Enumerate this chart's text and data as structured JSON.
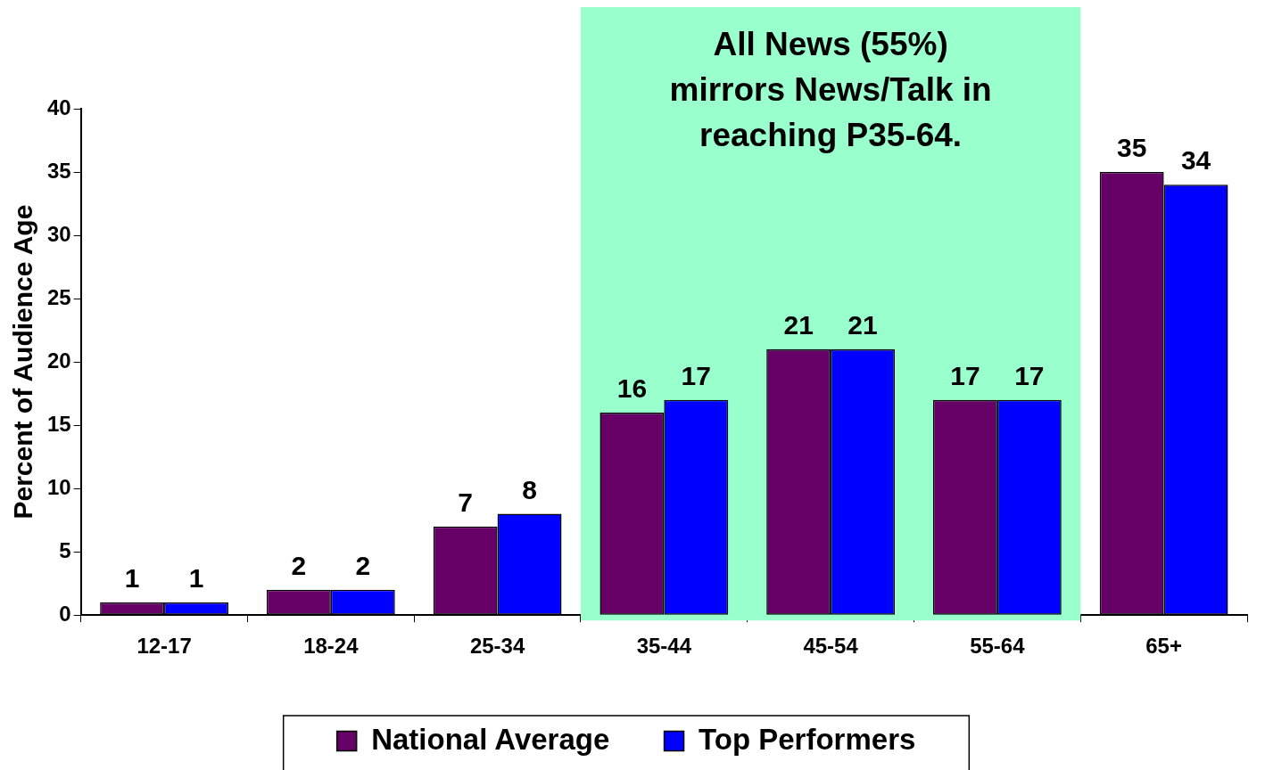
{
  "chart_data": {
    "type": "bar",
    "ylabel": "Percent of Audience Age",
    "categories": [
      "12-17",
      "18-24",
      "25-34",
      "35-44",
      "45-54",
      "55-64",
      "65+"
    ],
    "series": [
      {
        "name": "National Average",
        "color": "#660066",
        "values": [
          1,
          2,
          7,
          16,
          21,
          17,
          35
        ]
      },
      {
        "name": "Top Performers",
        "color": "#0000ff",
        "values": [
          1,
          2,
          8,
          17,
          21,
          17,
          34
        ]
      }
    ],
    "ylim": [
      0,
      40
    ],
    "yticks": [
      0,
      5,
      10,
      15,
      20,
      25,
      30,
      35,
      40
    ],
    "data_labels": true,
    "legend": "bottom",
    "bands": [
      {
        "axis": "x",
        "from": "35-44",
        "to": "55-64",
        "color": "#99ffcc",
        "label": "All News (55%)\nmirrors News/Talk in\nreaching P35-64."
      }
    ]
  }
}
